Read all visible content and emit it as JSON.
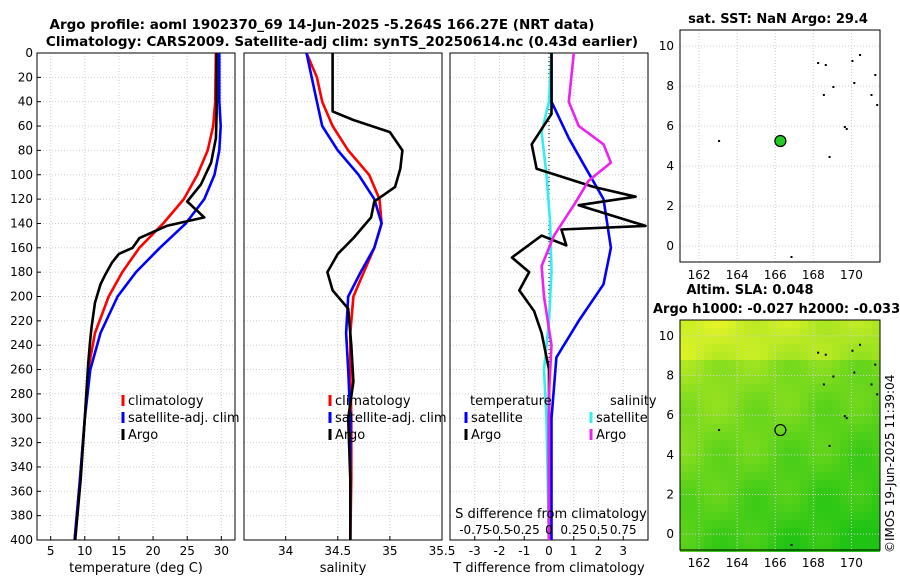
{
  "header": {
    "line1": "Argo profile: aoml 1902370_69 14-Jun-2025 -5.264S 166.27E (NRT data)",
    "line2": "Climatology: CARS2009. Satellite-adj clim: synTS_20250614.nc (0.43d earlier)"
  },
  "sst_map": {
    "title": "sat. SST: NaN Argo: 29.4",
    "x_ticks": [
      "162",
      "164",
      "166",
      "168",
      "170"
    ],
    "y_ticks": [
      "0",
      "2",
      "4",
      "6",
      "8",
      "10"
    ],
    "argo_marker": {
      "lon": 166.27,
      "lat": 5.25,
      "color": "#22cc22"
    }
  },
  "sla_map": {
    "title1": "Altim. SLA: 0.048",
    "title2": "Argo h1000: -0.027 h2000: -0.033",
    "x_ticks": [
      "162",
      "164",
      "166",
      "168",
      "170"
    ],
    "y_ticks": [
      "0",
      "2",
      "4",
      "6",
      "8",
      "10"
    ],
    "argo_marker": {
      "lon": 166.27,
      "lat": 5.25
    }
  },
  "watermark": "©IMOS 19-Jun-2025 11:39:04",
  "colors": {
    "climatology": "#ff0000",
    "satellite": "#0000ff",
    "argo": "#000000",
    "sat_s": "#33eeee",
    "argo_s": "#ee22ee"
  },
  "chart_data": [
    {
      "id": "temperature",
      "type": "line",
      "xlabel": "temperature (deg C)",
      "ylabel": "",
      "xlim": [
        3,
        32
      ],
      "ylim": [
        400,
        0
      ],
      "x_ticks": [
        "5",
        "10",
        "15",
        "20",
        "25",
        "30"
      ],
      "y_ticks": [
        "0",
        "20",
        "40",
        "60",
        "80",
        "100",
        "120",
        "140",
        "160",
        "180",
        "200",
        "220",
        "240",
        "260",
        "280",
        "300",
        "320",
        "340",
        "360",
        "380",
        "400"
      ],
      "legend": [
        "climatology",
        "satellite-adj. clim",
        "Argo"
      ],
      "legend_position": "lower-right",
      "series": [
        {
          "name": "climatology",
          "color_key": "climatology",
          "points": [
            [
              29.2,
              0
            ],
            [
              29.1,
              40
            ],
            [
              28.8,
              60
            ],
            [
              28,
              80
            ],
            [
              26.5,
              100
            ],
            [
              24.5,
              120
            ],
            [
              21.5,
              140
            ],
            [
              18,
              160
            ],
            [
              15.5,
              180
            ],
            [
              13.5,
              200
            ],
            [
              11.5,
              230
            ],
            [
              10.5,
              260
            ],
            [
              10,
              300
            ],
            [
              9.3,
              350
            ],
            [
              8.5,
              400
            ]
          ]
        },
        {
          "name": "satellite-adj. clim",
          "color_key": "satellite",
          "points": [
            [
              29.7,
              0
            ],
            [
              29.7,
              40
            ],
            [
              29.9,
              60
            ],
            [
              29.7,
              80
            ],
            [
              29,
              100
            ],
            [
              27.5,
              120
            ],
            [
              24.8,
              140
            ],
            [
              21,
              160
            ],
            [
              17.5,
              180
            ],
            [
              14.8,
              200
            ],
            [
              12.3,
              230
            ],
            [
              10.8,
              260
            ],
            [
              10,
              300
            ],
            [
              9.3,
              350
            ],
            [
              8.5,
              400
            ]
          ]
        },
        {
          "name": "Argo",
          "color_key": "argo",
          "points": [
            [
              29.3,
              0
            ],
            [
              29.3,
              50
            ],
            [
              29.2,
              70
            ],
            [
              28.5,
              90
            ],
            [
              27,
              108
            ],
            [
              25,
              122
            ],
            [
              27.5,
              135
            ],
            [
              22,
              142
            ],
            [
              18,
              152
            ],
            [
              17,
              160
            ],
            [
              15,
              165
            ],
            [
              14,
              172
            ],
            [
              13,
              182
            ],
            [
              12.3,
              190
            ],
            [
              11.5,
              205
            ],
            [
              11,
              225
            ],
            [
              10.8,
              235
            ],
            [
              10.5,
              255
            ],
            [
              10,
              300
            ],
            [
              9.4,
              350
            ],
            [
              8.6,
              400
            ]
          ]
        }
      ]
    },
    {
      "id": "salinity",
      "type": "line",
      "xlabel": "salinity",
      "ylabel": "",
      "xlim": [
        33.6,
        35.5
      ],
      "ylim": [
        400,
        0
      ],
      "x_ticks": [
        "34",
        "34.5",
        "35",
        "35.5"
      ],
      "legend": [
        "climatology",
        "satellite-adj. clim",
        "Argo"
      ],
      "legend_position": "lower-right",
      "series": [
        {
          "name": "climatology",
          "color_key": "climatology",
          "points": [
            [
              34.2,
              0
            ],
            [
              34.3,
              20
            ],
            [
              34.35,
              40
            ],
            [
              34.45,
              60
            ],
            [
              34.6,
              80
            ],
            [
              34.8,
              100
            ],
            [
              34.9,
              120
            ],
            [
              34.92,
              140
            ],
            [
              34.85,
              160
            ],
            [
              34.75,
              180
            ],
            [
              34.65,
              200
            ],
            [
              34.62,
              230
            ],
            [
              34.62,
              260
            ],
            [
              34.63,
              300
            ],
            [
              34.63,
              350
            ],
            [
              34.62,
              400
            ]
          ]
        },
        {
          "name": "satellite-adj. clim",
          "color_key": "satellite",
          "points": [
            [
              34.2,
              0
            ],
            [
              34.25,
              20
            ],
            [
              34.3,
              40
            ],
            [
              34.35,
              60
            ],
            [
              34.5,
              80
            ],
            [
              34.7,
              100
            ],
            [
              34.85,
              120
            ],
            [
              34.92,
              140
            ],
            [
              34.85,
              160
            ],
            [
              34.72,
              180
            ],
            [
              34.6,
              200
            ],
            [
              34.58,
              230
            ],
            [
              34.6,
              260
            ],
            [
              34.62,
              300
            ],
            [
              34.62,
              350
            ],
            [
              34.62,
              400
            ]
          ]
        },
        {
          "name": "Argo",
          "color_key": "argo",
          "points": [
            [
              34.45,
              0
            ],
            [
              34.45,
              30
            ],
            [
              34.45,
              48
            ],
            [
              34.65,
              55
            ],
            [
              35,
              65
            ],
            [
              35.12,
              80
            ],
            [
              35.1,
              95
            ],
            [
              35.05,
              110
            ],
            [
              34.85,
              122
            ],
            [
              34.82,
              135
            ],
            [
              34.65,
              152
            ],
            [
              34.5,
              165
            ],
            [
              34.4,
              180
            ],
            [
              34.45,
              195
            ],
            [
              34.6,
              210
            ],
            [
              34.63,
              240
            ],
            [
              34.65,
              270
            ],
            [
              34.6,
              300
            ],
            [
              34.62,
              350
            ],
            [
              34.62,
              400
            ]
          ]
        }
      ]
    },
    {
      "id": "difference",
      "type": "line",
      "xlabel": "T difference from climatology",
      "top_xlabel": "S difference from climatology",
      "ylabel": "",
      "xlim": [
        -4,
        4
      ],
      "ylim": [
        400,
        0
      ],
      "x_ticks": [
        "-3",
        "-2",
        "-1",
        "0",
        "1",
        "2",
        "3"
      ],
      "top_ticks": [
        "-0.75",
        "-0.5",
        "-0.25",
        "0",
        "0.25",
        "0.5",
        "0.75"
      ],
      "legend_temperature_title": "temperature",
      "legend_salinity_title": "salinity",
      "legend_temperature": [
        "satellite",
        "Argo"
      ],
      "legend_salinity": [
        "satellite",
        "Argo"
      ],
      "series": [
        {
          "name": "T satellite",
          "color_key": "satellite",
          "points": [
            [
              0.1,
              0
            ],
            [
              0.1,
              40
            ],
            [
              0.8,
              70
            ],
            [
              1.5,
              95
            ],
            [
              2.2,
              120
            ],
            [
              2.5,
              160
            ],
            [
              2.2,
              190
            ],
            [
              1.2,
              220
            ],
            [
              0.3,
              250
            ],
            [
              0.1,
              300
            ],
            [
              0.1,
              400
            ]
          ]
        },
        {
          "name": "S satellite",
          "color_key": "sat_s",
          "points": [
            [
              0.1,
              0
            ],
            [
              0,
              40
            ],
            [
              -0.3,
              65
            ],
            [
              -0.1,
              100
            ],
            [
              0.05,
              140
            ],
            [
              0.1,
              180
            ],
            [
              0,
              220
            ],
            [
              -0.2,
              260
            ],
            [
              -0.1,
              300
            ],
            [
              0,
              400
            ]
          ]
        },
        {
          "name": "T Argo",
          "color_key": "argo",
          "points": [
            [
              0.1,
              0
            ],
            [
              0.1,
              50
            ],
            [
              -0.7,
              75
            ],
            [
              -0.5,
              95
            ],
            [
              1.8,
              110
            ],
            [
              3.5,
              118
            ],
            [
              1.2,
              125
            ],
            [
              3.9,
              142
            ],
            [
              0.5,
              145
            ],
            [
              0.7,
              158
            ],
            [
              -0.3,
              150
            ],
            [
              -1.5,
              168
            ],
            [
              -0.8,
              180
            ],
            [
              -1.2,
              195
            ],
            [
              -0.6,
              212
            ],
            [
              -0.3,
              230
            ],
            [
              0,
              260
            ],
            [
              0,
              400
            ]
          ]
        },
        {
          "name": "S Argo",
          "color_key": "argo_s",
          "points": [
            [
              1,
              0
            ],
            [
              0.8,
              40
            ],
            [
              1.2,
              60
            ],
            [
              2.2,
              75
            ],
            [
              2.5,
              90
            ],
            [
              1.6,
              105
            ],
            [
              1,
              125
            ],
            [
              0.2,
              150
            ],
            [
              -0.3,
              175
            ],
            [
              -0.2,
              200
            ],
            [
              0.1,
              240
            ],
            [
              0,
              280
            ],
            [
              0,
              400
            ]
          ]
        }
      ]
    }
  ]
}
